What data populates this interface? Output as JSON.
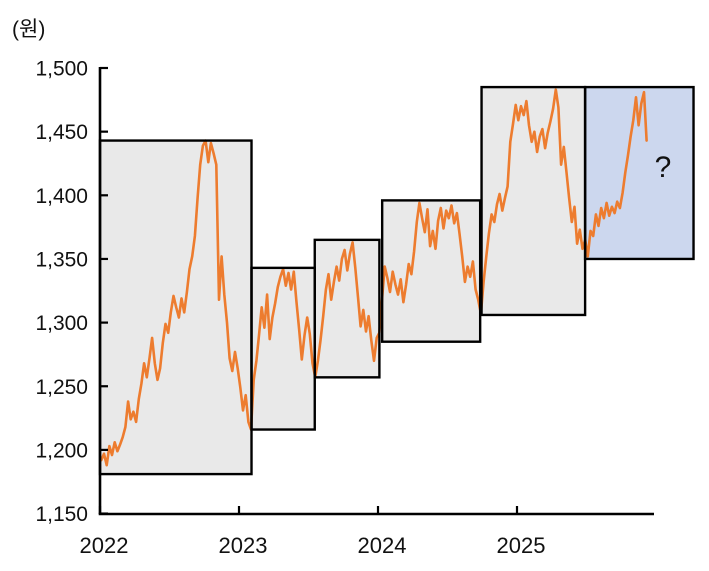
{
  "y_axis": {
    "unit_label": "(원)",
    "min": 1150,
    "max": 1500,
    "step": 50,
    "tick_labels": [
      "1,150",
      "1,200",
      "1,250",
      "1,300",
      "1,350",
      "1,400",
      "1,450",
      "1,500"
    ]
  },
  "x_axis": {
    "tick_labels": [
      "2022",
      "2023",
      "2024",
      "2025"
    ],
    "tick_years": [
      2022,
      2023,
      2024,
      2025
    ]
  },
  "forecast": {
    "label": "?",
    "label_t": 2026.05,
    "label_v": 1423
  },
  "colors": {
    "line": "#ED7C2F",
    "box_fill": "#E9E9E9",
    "forecast_fill": "#CCD7EE",
    "border": "#000000",
    "text": "#111111"
  },
  "chart_data": {
    "type": "line",
    "title": "",
    "ylabel": "(원)",
    "ylim": [
      1150,
      1500
    ],
    "xlim": [
      2022,
      2026.0
    ],
    "grid": false,
    "legend": false,
    "x_tick_labels": [
      "2022",
      "2023",
      "2024",
      "2025"
    ],
    "range_boxes": [
      {
        "name": "range-2022",
        "kind": "historical",
        "t_start": 2022.0,
        "t_end": 2023.09,
        "v_min": 1181,
        "v_max": 1443
      },
      {
        "name": "range-2023-h1",
        "kind": "historical",
        "t_start": 2023.09,
        "t_end": 2023.545,
        "v_min": 1216,
        "v_max": 1343
      },
      {
        "name": "range-2023-h2",
        "kind": "historical",
        "t_start": 2023.545,
        "t_end": 2024.01,
        "v_min": 1257,
        "v_max": 1365
      },
      {
        "name": "range-2024",
        "kind": "historical",
        "t_start": 2024.03,
        "t_end": 2024.735,
        "v_min": 1285,
        "v_max": 1396
      },
      {
        "name": "range-2024h2-2025",
        "kind": "historical",
        "t_start": 2024.745,
        "t_end": 2025.49,
        "v_min": 1306,
        "v_max": 1485
      },
      {
        "name": "range-forecast",
        "kind": "forecast",
        "t_start": 2025.49,
        "t_end": 2026.27,
        "v_min": 1350,
        "v_max": 1485
      }
    ],
    "series": [
      {
        "name": "exchange_rate_krw_per_usd",
        "t_start": 2022.0096,
        "t_step": 0.019231,
        "values": [
          1192,
          1197,
          1188,
          1203,
          1196,
          1206,
          1199,
          1204,
          1210,
          1218,
          1238,
          1224,
          1230,
          1222,
          1240,
          1252,
          1268,
          1257,
          1272,
          1288,
          1268,
          1255,
          1264,
          1284,
          1299,
          1292,
          1308,
          1321,
          1312,
          1304,
          1319,
          1308,
          1324,
          1342,
          1352,
          1368,
          1398,
          1424,
          1439,
          1443,
          1426,
          1441,
          1433,
          1424,
          1318,
          1352,
          1322,
          1300,
          1272,
          1262,
          1277,
          1264,
          1249,
          1231,
          1243,
          1222,
          1216,
          1255,
          1270,
          1290,
          1312,
          1296,
          1322,
          1287,
          1304,
          1315,
          1328,
          1336,
          1342,
          1329,
          1339,
          1326,
          1340,
          1316,
          1295,
          1271,
          1290,
          1304,
          1291,
          1268,
          1257,
          1270,
          1286,
          1305,
          1326,
          1338,
          1318,
          1332,
          1344,
          1333,
          1350,
          1357,
          1341,
          1354,
          1363,
          1343,
          1320,
          1297,
          1310,
          1293,
          1305,
          1286,
          1270,
          1288,
          1292,
          1318,
          1344,
          1335,
          1324,
          1340,
          1330,
          1322,
          1334,
          1316,
          1330,
          1346,
          1338,
          1356,
          1379,
          1394,
          1382,
          1371,
          1389,
          1360,
          1372,
          1358,
          1380,
          1390,
          1374,
          1388,
          1382,
          1392,
          1378,
          1386,
          1370,
          1352,
          1332,
          1344,
          1336,
          1348,
          1326,
          1318,
          1307,
          1332,
          1352,
          1370,
          1385,
          1379,
          1393,
          1401,
          1388,
          1398,
          1407,
          1442,
          1456,
          1471,
          1459,
          1470,
          1463,
          1474,
          1455,
          1442,
          1450,
          1434,
          1446,
          1452,
          1437,
          1449,
          1458,
          1468,
          1483,
          1469,
          1424,
          1438,
          1418,
          1398,
          1379,
          1391,
          1362,
          1373,
          1358,
          1365,
          1352,
          1372,
          1368,
          1385,
          1376,
          1390,
          1382,
          1394,
          1384,
          1391,
          1386,
          1395,
          1390,
          1402,
          1418,
          1431,
          1446,
          1459,
          1477,
          1455,
          1472,
          1481,
          1443
        ]
      }
    ]
  }
}
